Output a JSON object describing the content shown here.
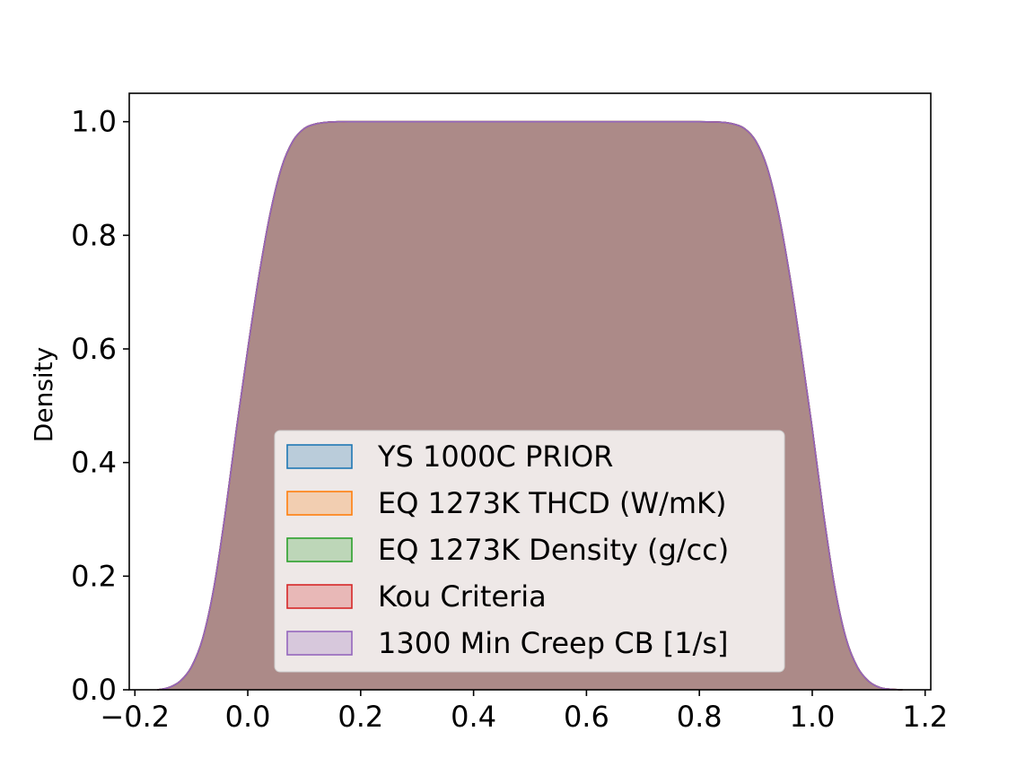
{
  "chart_data": {
    "type": "area",
    "title": "",
    "xlabel": "",
    "ylabel": "Density",
    "xlim": [
      -0.21,
      1.21
    ],
    "ylim": [
      0,
      1.05
    ],
    "xticks": [
      "−0.2",
      "0.0",
      "0.2",
      "0.4",
      "0.6",
      "0.8",
      "1.0",
      "1.2"
    ],
    "xtick_values": [
      -0.2,
      0.0,
      0.2,
      0.4,
      0.6,
      0.8,
      1.0,
      1.2
    ],
    "yticks": [
      "0.0",
      "0.2",
      "0.4",
      "0.6",
      "0.8",
      "1.0"
    ],
    "ytick_values": [
      0.0,
      0.2,
      0.4,
      0.6,
      0.8,
      1.0
    ],
    "grid": false,
    "legend_position": "lower-center",
    "x": [
      -0.16,
      -0.14,
      -0.12,
      -0.1,
      -0.08,
      -0.06,
      -0.04,
      -0.02,
      0.0,
      0.02,
      0.04,
      0.06,
      0.08,
      0.1,
      0.12,
      0.14,
      0.16,
      0.2,
      0.3,
      0.4,
      0.5,
      0.6,
      0.7,
      0.8,
      0.84,
      0.86,
      0.88,
      0.9,
      0.92,
      0.94,
      0.96,
      0.98,
      1.0,
      1.02,
      1.04,
      1.06,
      1.08,
      1.1,
      1.12,
      1.14,
      1.16
    ],
    "series": [
      {
        "name": "YS 1000C PRIOR",
        "color": "#1f77b4",
        "values": [
          0.0,
          0.004,
          0.015,
          0.04,
          0.09,
          0.18,
          0.31,
          0.46,
          0.6,
          0.73,
          0.84,
          0.92,
          0.966,
          0.988,
          0.996,
          0.999,
          1.0,
          1.0,
          1.0,
          1.0,
          1.0,
          1.0,
          1.0,
          1.0,
          0.999,
          0.996,
          0.988,
          0.966,
          0.92,
          0.84,
          0.73,
          0.6,
          0.46,
          0.31,
          0.18,
          0.09,
          0.04,
          0.015,
          0.004,
          0.001,
          0.0
        ]
      },
      {
        "name": "EQ 1273K THCD (W/mK)",
        "color": "#ff7f0e",
        "values": [
          0.0,
          0.004,
          0.015,
          0.04,
          0.09,
          0.18,
          0.31,
          0.46,
          0.6,
          0.73,
          0.84,
          0.92,
          0.966,
          0.988,
          0.996,
          0.999,
          1.0,
          1.0,
          1.0,
          1.0,
          1.0,
          1.0,
          1.0,
          1.0,
          0.999,
          0.996,
          0.988,
          0.966,
          0.92,
          0.84,
          0.73,
          0.6,
          0.46,
          0.31,
          0.18,
          0.09,
          0.04,
          0.015,
          0.004,
          0.001,
          0.0
        ]
      },
      {
        "name": "EQ 1273K Density (g/cc)",
        "color": "#2ca02c",
        "values": [
          0.0,
          0.004,
          0.015,
          0.04,
          0.09,
          0.18,
          0.31,
          0.46,
          0.6,
          0.73,
          0.84,
          0.92,
          0.966,
          0.988,
          0.996,
          0.999,
          1.0,
          1.0,
          1.0,
          1.0,
          1.0,
          1.0,
          1.0,
          1.0,
          0.999,
          0.996,
          0.988,
          0.966,
          0.92,
          0.84,
          0.73,
          0.6,
          0.46,
          0.31,
          0.18,
          0.09,
          0.04,
          0.015,
          0.004,
          0.001,
          0.0
        ]
      },
      {
        "name": "Kou Criteria",
        "color": "#d62728",
        "values": [
          0.0,
          0.004,
          0.015,
          0.04,
          0.09,
          0.18,
          0.31,
          0.46,
          0.6,
          0.73,
          0.84,
          0.92,
          0.966,
          0.988,
          0.996,
          0.999,
          1.0,
          1.0,
          1.0,
          1.0,
          1.0,
          1.0,
          1.0,
          1.0,
          0.999,
          0.996,
          0.988,
          0.966,
          0.92,
          0.84,
          0.73,
          0.6,
          0.46,
          0.31,
          0.18,
          0.09,
          0.04,
          0.015,
          0.004,
          0.001,
          0.0
        ]
      },
      {
        "name": "1300 Min Creep CB [1/s]",
        "color": "#9467bd",
        "values": [
          0.0,
          0.004,
          0.015,
          0.04,
          0.09,
          0.18,
          0.31,
          0.46,
          0.6,
          0.73,
          0.84,
          0.92,
          0.966,
          0.988,
          0.996,
          0.999,
          1.0,
          1.0,
          1.0,
          1.0,
          1.0,
          1.0,
          1.0,
          1.0,
          0.999,
          0.996,
          0.988,
          0.966,
          0.92,
          0.84,
          0.73,
          0.6,
          0.46,
          0.31,
          0.18,
          0.09,
          0.04,
          0.015,
          0.004,
          0.001,
          0.0
        ]
      }
    ]
  }
}
